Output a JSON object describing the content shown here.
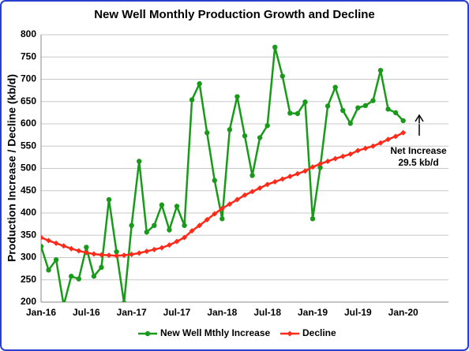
{
  "chart_data": {
    "type": "line",
    "title": "New Well Monthly Production Growth and Decline",
    "y_label": "Production Increase / Decline (kb/d)",
    "annotation": [
      "Net Increase",
      "29.5 kb/d"
    ],
    "categories": [
      "Jan-16",
      null,
      null,
      null,
      null,
      null,
      "Jul-16",
      null,
      null,
      null,
      null,
      null,
      "Jan-17",
      null,
      null,
      null,
      null,
      null,
      "Jul-17",
      null,
      null,
      null,
      null,
      null,
      "Jan-18",
      null,
      null,
      null,
      null,
      null,
      "Jul-18",
      null,
      null,
      null,
      null,
      null,
      "Jan-19",
      null,
      null,
      null,
      null,
      null,
      "Jul-19",
      null,
      null,
      null,
      null,
      null,
      "Jan-20",
      null,
      null,
      null,
      null,
      null,
      null
    ],
    "series": [
      {
        "name": "New Well Mthly Increase",
        "color": "#1a9a1a",
        "marker": "circle",
        "values": [
          325,
          272,
          295,
          193,
          258,
          252,
          323,
          258,
          278,
          430,
          313,
          198,
          372,
          516,
          357,
          372,
          418,
          362,
          415,
          372,
          654,
          690,
          580,
          473,
          387,
          587,
          661,
          573,
          484,
          569,
          596,
          772,
          707,
          624,
          623,
          649,
          387,
          502,
          640,
          682,
          630,
          601,
          636,
          641,
          652,
          720,
          633,
          625,
          607,
          null,
          null,
          null,
          null,
          null,
          null
        ]
      },
      {
        "name": "Decline",
        "color": "#ff2a1a",
        "marker": "diamond",
        "values": [
          345,
          338,
          332,
          326,
          320,
          315,
          311,
          308,
          306,
          305,
          304,
          305,
          307,
          310,
          314,
          318,
          322,
          328,
          336,
          345,
          360,
          372,
          385,
          398,
          410,
          420,
          430,
          440,
          448,
          456,
          464,
          470,
          476,
          482,
          488,
          494,
          503,
          510,
          516,
          522,
          527,
          532,
          540,
          545,
          550,
          557,
          565,
          572,
          580,
          null,
          null,
          null,
          null,
          null,
          null
        ]
      }
    ],
    "ylim": [
      200,
      800
    ],
    "yticks": [
      200,
      250,
      300,
      350,
      400,
      450,
      500,
      550,
      600,
      650,
      700,
      750,
      800
    ],
    "grid": true
  }
}
